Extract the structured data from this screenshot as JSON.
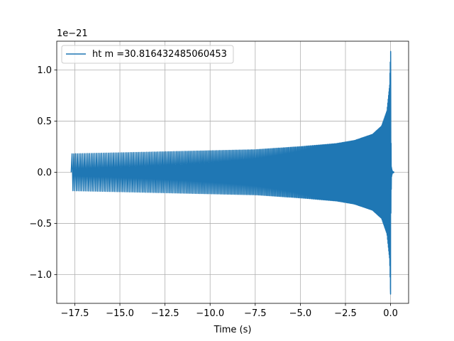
{
  "chart_data": {
    "type": "line",
    "title": "",
    "xlabel": "Time (s)",
    "ylabel": "",
    "y_offset_label": "1e−21",
    "xlim": [
      -18.5,
      1.0
    ],
    "ylim": [
      -1.28,
      1.28
    ],
    "x_ticks": [
      -17.5,
      -15.0,
      -12.5,
      -10.0,
      -7.5,
      -5.0,
      -2.5,
      0.0
    ],
    "x_tick_labels": [
      "−17.5",
      "−15.0",
      "−12.5",
      "−10.0",
      "−7.5",
      "−5.0",
      "−2.5",
      "0.0"
    ],
    "y_ticks": [
      -1.0,
      -0.5,
      0.0,
      0.5,
      1.0
    ],
    "y_tick_labels": [
      "−1.0",
      "−0.5",
      "0.0",
      "0.5",
      "1.0"
    ],
    "grid": true,
    "legend_position": "upper-left",
    "series": [
      {
        "name": "ht m =30.816432485060453",
        "color": "#1f77b4",
        "envelope": {
          "time": [
            -17.7,
            -15.0,
            -12.5,
            -10.0,
            -7.5,
            -5.0,
            -3.0,
            -2.0,
            -1.0,
            -0.5,
            -0.2,
            -0.05,
            0.0,
            0.02,
            0.05,
            0.1,
            0.2
          ],
          "amplitude": [
            0.18,
            0.19,
            0.2,
            0.21,
            0.22,
            0.25,
            0.28,
            0.31,
            0.37,
            0.45,
            0.6,
            0.85,
            1.18,
            0.4,
            0.05,
            0.01,
            0.0
          ]
        },
        "start_time": -17.7,
        "peak_time": 0.0,
        "peak_value": 1.18,
        "trough_value": -1.19
      }
    ]
  }
}
